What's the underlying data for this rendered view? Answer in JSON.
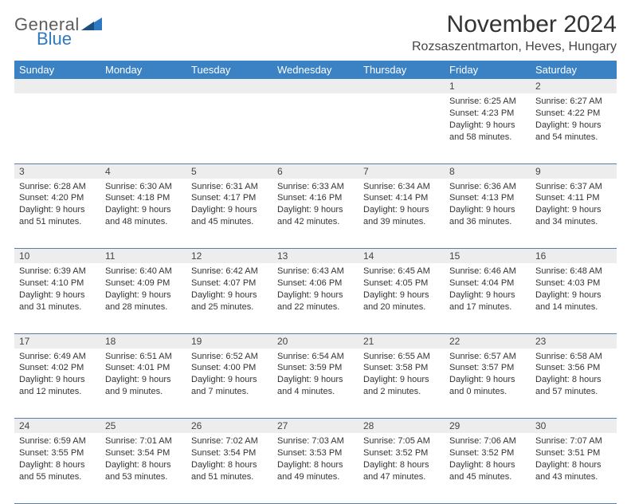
{
  "brand": {
    "word1": "General",
    "word2": "Blue"
  },
  "title": "November 2024",
  "location": "Rozsaszentmarton, Heves, Hungary",
  "colors": {
    "header_bg": "#3a82c4",
    "header_text": "#ffffff",
    "daynum_bg": "#ededed",
    "cell_border": "#5a7fa3",
    "body_text": "#333333",
    "logo_gray": "#5c5c5c",
    "logo_blue": "#2f78c2",
    "page_bg": "#ffffff"
  },
  "font": {
    "title_size": 30,
    "location_size": 16,
    "header_size": 13,
    "daynum_size": 12,
    "body_size": 11
  },
  "weekdays": [
    "Sunday",
    "Monday",
    "Tuesday",
    "Wednesday",
    "Thursday",
    "Friday",
    "Saturday"
  ],
  "weeks": [
    [
      null,
      null,
      null,
      null,
      null,
      {
        "n": "1",
        "sunrise": "Sunrise: 6:25 AM",
        "sunset": "Sunset: 4:23 PM",
        "daylight": "Daylight: 9 hours and 58 minutes."
      },
      {
        "n": "2",
        "sunrise": "Sunrise: 6:27 AM",
        "sunset": "Sunset: 4:22 PM",
        "daylight": "Daylight: 9 hours and 54 minutes."
      }
    ],
    [
      {
        "n": "3",
        "sunrise": "Sunrise: 6:28 AM",
        "sunset": "Sunset: 4:20 PM",
        "daylight": "Daylight: 9 hours and 51 minutes."
      },
      {
        "n": "4",
        "sunrise": "Sunrise: 6:30 AM",
        "sunset": "Sunset: 4:18 PM",
        "daylight": "Daylight: 9 hours and 48 minutes."
      },
      {
        "n": "5",
        "sunrise": "Sunrise: 6:31 AM",
        "sunset": "Sunset: 4:17 PM",
        "daylight": "Daylight: 9 hours and 45 minutes."
      },
      {
        "n": "6",
        "sunrise": "Sunrise: 6:33 AM",
        "sunset": "Sunset: 4:16 PM",
        "daylight": "Daylight: 9 hours and 42 minutes."
      },
      {
        "n": "7",
        "sunrise": "Sunrise: 6:34 AM",
        "sunset": "Sunset: 4:14 PM",
        "daylight": "Daylight: 9 hours and 39 minutes."
      },
      {
        "n": "8",
        "sunrise": "Sunrise: 6:36 AM",
        "sunset": "Sunset: 4:13 PM",
        "daylight": "Daylight: 9 hours and 36 minutes."
      },
      {
        "n": "9",
        "sunrise": "Sunrise: 6:37 AM",
        "sunset": "Sunset: 4:11 PM",
        "daylight": "Daylight: 9 hours and 34 minutes."
      }
    ],
    [
      {
        "n": "10",
        "sunrise": "Sunrise: 6:39 AM",
        "sunset": "Sunset: 4:10 PM",
        "daylight": "Daylight: 9 hours and 31 minutes."
      },
      {
        "n": "11",
        "sunrise": "Sunrise: 6:40 AM",
        "sunset": "Sunset: 4:09 PM",
        "daylight": "Daylight: 9 hours and 28 minutes."
      },
      {
        "n": "12",
        "sunrise": "Sunrise: 6:42 AM",
        "sunset": "Sunset: 4:07 PM",
        "daylight": "Daylight: 9 hours and 25 minutes."
      },
      {
        "n": "13",
        "sunrise": "Sunrise: 6:43 AM",
        "sunset": "Sunset: 4:06 PM",
        "daylight": "Daylight: 9 hours and 22 minutes."
      },
      {
        "n": "14",
        "sunrise": "Sunrise: 6:45 AM",
        "sunset": "Sunset: 4:05 PM",
        "daylight": "Daylight: 9 hours and 20 minutes."
      },
      {
        "n": "15",
        "sunrise": "Sunrise: 6:46 AM",
        "sunset": "Sunset: 4:04 PM",
        "daylight": "Daylight: 9 hours and 17 minutes."
      },
      {
        "n": "16",
        "sunrise": "Sunrise: 6:48 AM",
        "sunset": "Sunset: 4:03 PM",
        "daylight": "Daylight: 9 hours and 14 minutes."
      }
    ],
    [
      {
        "n": "17",
        "sunrise": "Sunrise: 6:49 AM",
        "sunset": "Sunset: 4:02 PM",
        "daylight": "Daylight: 9 hours and 12 minutes."
      },
      {
        "n": "18",
        "sunrise": "Sunrise: 6:51 AM",
        "sunset": "Sunset: 4:01 PM",
        "daylight": "Daylight: 9 hours and 9 minutes."
      },
      {
        "n": "19",
        "sunrise": "Sunrise: 6:52 AM",
        "sunset": "Sunset: 4:00 PM",
        "daylight": "Daylight: 9 hours and 7 minutes."
      },
      {
        "n": "20",
        "sunrise": "Sunrise: 6:54 AM",
        "sunset": "Sunset: 3:59 PM",
        "daylight": "Daylight: 9 hours and 4 minutes."
      },
      {
        "n": "21",
        "sunrise": "Sunrise: 6:55 AM",
        "sunset": "Sunset: 3:58 PM",
        "daylight": "Daylight: 9 hours and 2 minutes."
      },
      {
        "n": "22",
        "sunrise": "Sunrise: 6:57 AM",
        "sunset": "Sunset: 3:57 PM",
        "daylight": "Daylight: 9 hours and 0 minutes."
      },
      {
        "n": "23",
        "sunrise": "Sunrise: 6:58 AM",
        "sunset": "Sunset: 3:56 PM",
        "daylight": "Daylight: 8 hours and 57 minutes."
      }
    ],
    [
      {
        "n": "24",
        "sunrise": "Sunrise: 6:59 AM",
        "sunset": "Sunset: 3:55 PM",
        "daylight": "Daylight: 8 hours and 55 minutes."
      },
      {
        "n": "25",
        "sunrise": "Sunrise: 7:01 AM",
        "sunset": "Sunset: 3:54 PM",
        "daylight": "Daylight: 8 hours and 53 minutes."
      },
      {
        "n": "26",
        "sunrise": "Sunrise: 7:02 AM",
        "sunset": "Sunset: 3:54 PM",
        "daylight": "Daylight: 8 hours and 51 minutes."
      },
      {
        "n": "27",
        "sunrise": "Sunrise: 7:03 AM",
        "sunset": "Sunset: 3:53 PM",
        "daylight": "Daylight: 8 hours and 49 minutes."
      },
      {
        "n": "28",
        "sunrise": "Sunrise: 7:05 AM",
        "sunset": "Sunset: 3:52 PM",
        "daylight": "Daylight: 8 hours and 47 minutes."
      },
      {
        "n": "29",
        "sunrise": "Sunrise: 7:06 AM",
        "sunset": "Sunset: 3:52 PM",
        "daylight": "Daylight: 8 hours and 45 minutes."
      },
      {
        "n": "30",
        "sunrise": "Sunrise: 7:07 AM",
        "sunset": "Sunset: 3:51 PM",
        "daylight": "Daylight: 8 hours and 43 minutes."
      }
    ]
  ]
}
